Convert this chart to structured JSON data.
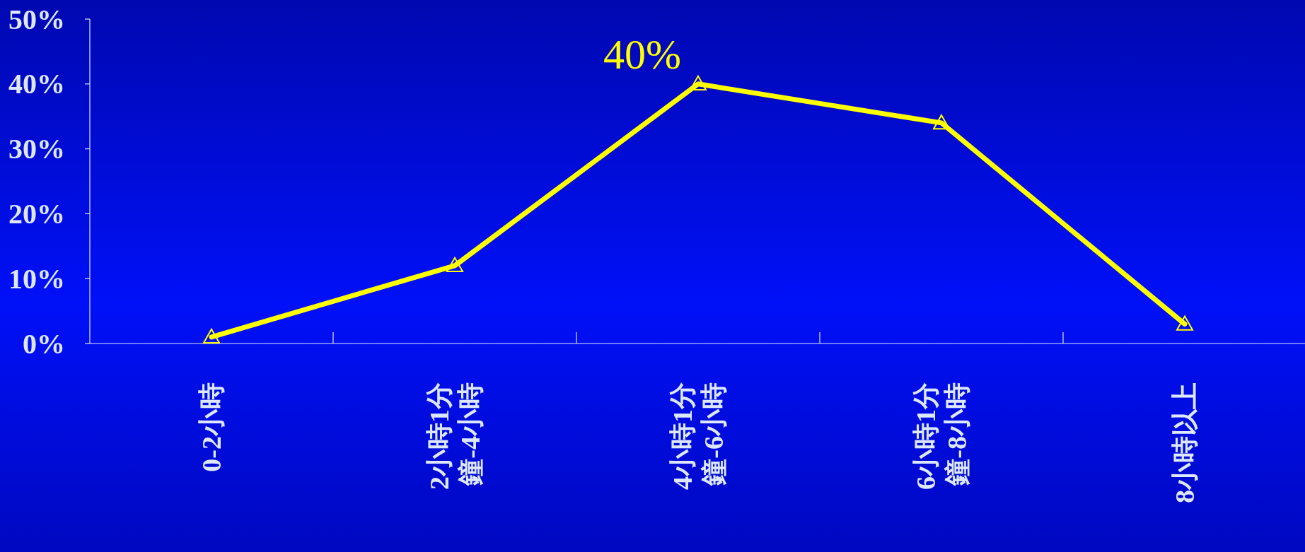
{
  "chart_data": {
    "type": "line",
    "categories": [
      "0-2小時",
      "2小時1分鐘-4小時",
      "4小時1分鐘-6小時",
      "6小時1分鐘-8小時",
      "8小時以上"
    ],
    "series": [
      {
        "color": "#ffff00",
        "values": [
          1,
          12,
          40,
          34,
          3
        ],
        "value_labels": [
          null,
          null,
          "40%",
          null,
          null
        ]
      }
    ],
    "ylim": [
      0,
      50
    ],
    "yticks": [
      {
        "value": 0,
        "label": "0%"
      },
      {
        "value": 10,
        "label": "10%"
      },
      {
        "value": 20,
        "label": "20%"
      },
      {
        "value": 30,
        "label": "30%"
      },
      {
        "value": 40,
        "label": "40%"
      },
      {
        "value": 50,
        "label": "50%"
      }
    ],
    "marker": "triangle",
    "line_style": "solid",
    "grid": false
  }
}
